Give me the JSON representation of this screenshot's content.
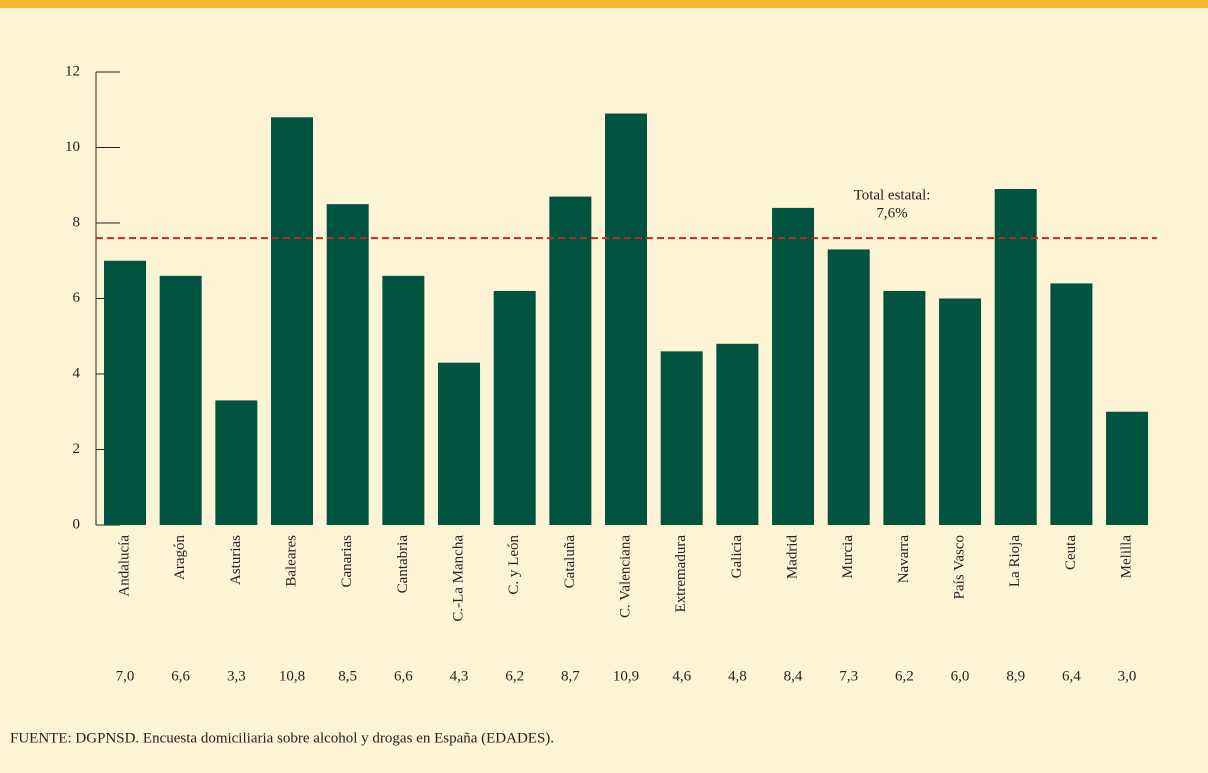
{
  "chart_data": {
    "type": "bar",
    "categories": [
      "Andalucía",
      "Aragón",
      "Asturias",
      "Baleares",
      "Canarias",
      "Cantabria",
      "C.-La Mancha",
      "C. y León",
      "Cataluña",
      "C. Valenciana",
      "Extremadura",
      "Galicia",
      "Madrid",
      "Murcia",
      "Navarra",
      "País Vasco",
      "La Rioja",
      "Ceuta",
      "Melilla"
    ],
    "values": [
      7.0,
      6.6,
      3.3,
      10.8,
      8.5,
      6.6,
      4.3,
      6.2,
      8.7,
      10.9,
      4.6,
      4.8,
      8.4,
      7.3,
      6.2,
      6.0,
      8.9,
      6.4,
      3.0
    ],
    "value_labels": [
      "7,0",
      "6,6",
      "3,3",
      "10,8",
      "8,5",
      "6,6",
      "4,3",
      "6,2",
      "8,7",
      "10,9",
      "4,6",
      "4,8",
      "8,4",
      "7,3",
      "6,2",
      "6,0",
      "8,9",
      "6,4",
      "3,0"
    ],
    "color": "#00543f",
    "ylim": [
      0,
      12
    ],
    "yticks": [
      0,
      2,
      4,
      6,
      8,
      10,
      12
    ],
    "reference_line": {
      "value": 7.6,
      "label": [
        "Total estatal:",
        "7,6%"
      ],
      "color": "#c0282d"
    },
    "source": "FUENTE: DGPNSD. Encuesta domiciliaria sobre alcohol y drogas en España (EDADES)."
  }
}
